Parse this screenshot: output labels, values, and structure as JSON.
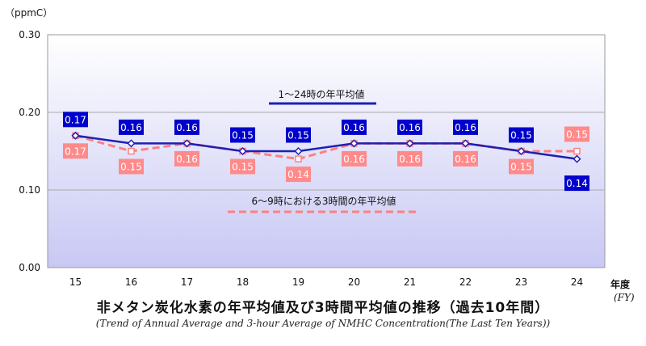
{
  "chart_data": {
    "type": "line",
    "y_unit_label": "（ppmC）",
    "x_unit_label": "年度",
    "x_unit_label_en": "(FY)",
    "categories": [
      "15",
      "16",
      "17",
      "18",
      "19",
      "20",
      "21",
      "22",
      "23",
      "24"
    ],
    "ylim": [
      0.0,
      0.3
    ],
    "yticks": [
      "0.00",
      "0.10",
      "0.20",
      "0.30"
    ],
    "series": [
      {
        "name": "1～24時の年平均値",
        "color": "#1f1fb4",
        "label_bg": "#0000cc",
        "label_fg": "#ffffff",
        "values": [
          0.17,
          0.16,
          0.16,
          0.15,
          0.15,
          0.16,
          0.16,
          0.16,
          0.15,
          0.14
        ],
        "labels": [
          "0.17",
          "0.16",
          "0.16",
          "0.15",
          "0.15",
          "0.16",
          "0.16",
          "0.16",
          "0.15",
          "0.14"
        ]
      },
      {
        "name": "6～9時における3時間の年平均値",
        "color": "#ff8080",
        "label_bg": "#ff8a8a",
        "label_fg": "#ffffff",
        "values": [
          0.17,
          0.15,
          0.16,
          0.15,
          0.14,
          0.16,
          0.16,
          0.16,
          0.15,
          0.15
        ],
        "labels": [
          "0.17",
          "0.15",
          "0.16",
          "0.15",
          "0.14",
          "0.16",
          "0.16",
          "0.16",
          "0.15",
          "0.15"
        ]
      }
    ],
    "title": "非メタン炭化水素の年平均値及び3時間平均値の推移（過去10年間）",
    "subtitle": "(Trend of Annual Average and 3-hour Average of NMHC Concentration(The Last Ten Years))",
    "grid": true
  }
}
